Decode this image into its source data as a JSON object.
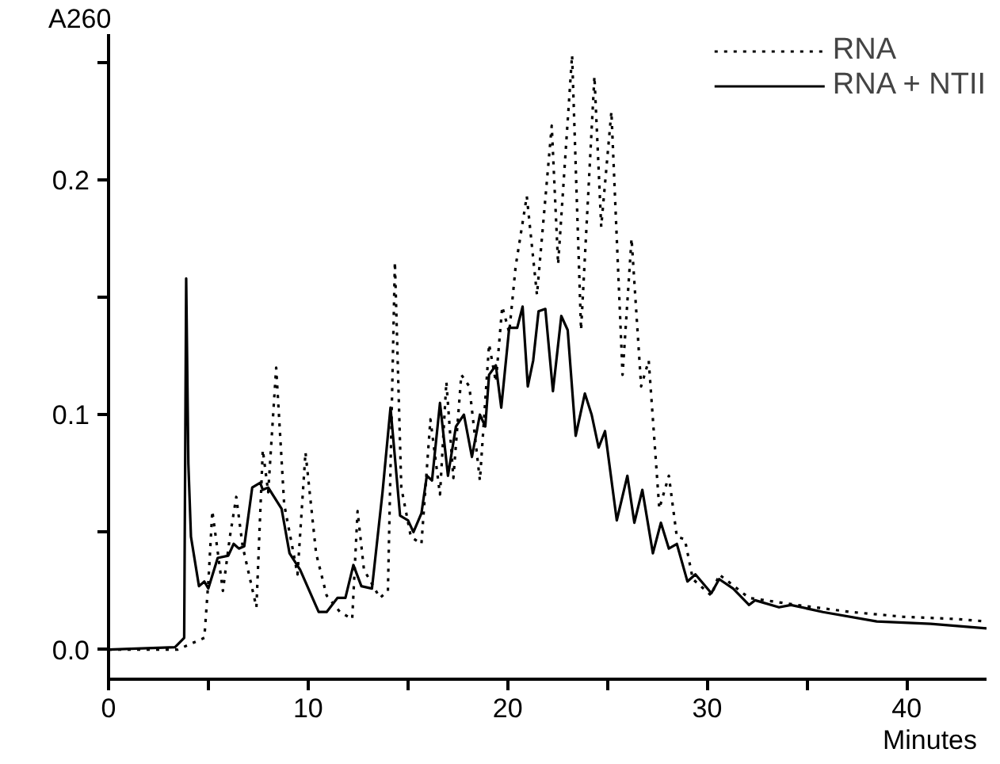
{
  "chart_data": {
    "type": "line",
    "xlabel": "Minutes",
    "ylabel": "A260",
    "xlim": [
      0,
      44
    ],
    "ylim": [
      -0.0126,
      0.262
    ],
    "xticks": [
      0,
      {
        "value": 5,
        "label": null
      },
      10,
      {
        "value": 15,
        "label": null
      },
      20,
      {
        "value": 25,
        "label": null
      },
      30,
      {
        "value": 35,
        "label": null
      },
      40
    ],
    "yticks": [
      {
        "value": 0,
        "label": "0.0"
      },
      {
        "value": 0.05,
        "label": null
      },
      {
        "value": 0.1,
        "label": "0.1"
      },
      {
        "value": 0.15,
        "label": null
      },
      {
        "value": 0.2,
        "label": "0.2"
      },
      {
        "value": 0.25,
        "label": null
      }
    ],
    "grid": false,
    "legend": "top right",
    "marker": "none",
    "series": [
      {
        "name": "RNA",
        "color": "#000000",
        "line_style": "dotted",
        "x": [
          0,
          3.47,
          4.8,
          5.01,
          5.2,
          5.73,
          6.08,
          6.4,
          6.72,
          7.41,
          7.73,
          8.0,
          8.4,
          8.8,
          9.47,
          9.87,
          10.4,
          10.93,
          11.6,
          12.21,
          12.48,
          12.8,
          13.6,
          14.0,
          14.35,
          14.67,
          15.15,
          15.68,
          16.13,
          16.61,
          16.93,
          17.28,
          17.68,
          18.08,
          18.61,
          19.07,
          19.41,
          19.73,
          20.08,
          20.4,
          20.96,
          21.47,
          22.21,
          22.53,
          23.23,
          23.68,
          24.35,
          24.69,
          25.2,
          25.76,
          26.21,
          26.69,
          27.07,
          27.6,
          28.08,
          28.48,
          28.88,
          29.28,
          30.21,
          30.6,
          32.1,
          34.5,
          37.2,
          39.8,
          42.5,
          44
        ],
        "values": [
          0,
          0,
          0.005,
          0.03,
          0.059,
          0.025,
          0.048,
          0.065,
          0.044,
          0.018,
          0.085,
          0.067,
          0.12,
          0.062,
          0.032,
          0.084,
          0.041,
          0.023,
          0.016,
          0.013,
          0.059,
          0.034,
          0.022,
          0.025,
          0.165,
          0.069,
          0.048,
          0.045,
          0.098,
          0.066,
          0.114,
          0.073,
          0.117,
          0.112,
          0.072,
          0.13,
          0.114,
          0.146,
          0.135,
          0.163,
          0.193,
          0.151,
          0.223,
          0.164,
          0.253,
          0.136,
          0.244,
          0.18,
          0.229,
          0.117,
          0.175,
          0.112,
          0.123,
          0.06,
          0.074,
          0.048,
          0.047,
          0.03,
          0.023,
          0.032,
          0.022,
          0.019,
          0.016,
          0.014,
          0.013,
          0.012
        ]
      },
      {
        "name": "RNA + NTII",
        "color": "#000000",
        "line_style": "solid",
        "x": [
          0,
          3.33,
          3.79,
          3.89,
          4.0,
          4.13,
          4.53,
          4.8,
          5.0,
          5.47,
          6.0,
          6.27,
          6.53,
          6.8,
          7.2,
          7.6,
          7.73,
          8.0,
          8.67,
          9.07,
          9.6,
          10.53,
          10.93,
          11.47,
          11.87,
          12.27,
          12.67,
          13.2,
          13.73,
          14.13,
          14.61,
          15.01,
          15.28,
          15.68,
          15.95,
          16.21,
          16.61,
          17.01,
          17.41,
          17.81,
          18.21,
          18.61,
          18.88,
          19.07,
          19.41,
          19.68,
          20.08,
          20.48,
          20.75,
          21.01,
          21.28,
          21.55,
          21.89,
          22.27,
          22.69,
          23.01,
          23.41,
          23.87,
          24.21,
          24.56,
          24.88,
          25.47,
          26.0,
          26.35,
          26.75,
          27.28,
          27.68,
          28.08,
          28.48,
          29.01,
          29.41,
          30.21,
          30.6,
          31.3,
          32.1,
          32.4,
          33.6,
          34.2,
          35.8,
          38.5,
          41.2,
          44
        ],
        "values": [
          0,
          0.001,
          0.005,
          0.158,
          0.079,
          0.048,
          0.027,
          0.029,
          0.026,
          0.039,
          0.04,
          0.045,
          0.043,
          0.044,
          0.069,
          0.071,
          0.068,
          0.069,
          0.06,
          0.041,
          0.034,
          0.016,
          0.016,
          0.022,
          0.022,
          0.036,
          0.027,
          0.026,
          0.067,
          0.103,
          0.057,
          0.055,
          0.05,
          0.058,
          0.074,
          0.072,
          0.105,
          0.074,
          0.095,
          0.1,
          0.082,
          0.1,
          0.095,
          0.117,
          0.121,
          0.103,
          0.137,
          0.137,
          0.146,
          0.112,
          0.123,
          0.144,
          0.145,
          0.11,
          0.142,
          0.136,
          0.091,
          0.109,
          0.1,
          0.086,
          0.093,
          0.055,
          0.074,
          0.054,
          0.068,
          0.041,
          0.054,
          0.043,
          0.045,
          0.029,
          0.032,
          0.024,
          0.03,
          0.026,
          0.019,
          0.021,
          0.018,
          0.019,
          0.016,
          0.012,
          0.011,
          0.009
        ]
      }
    ]
  }
}
